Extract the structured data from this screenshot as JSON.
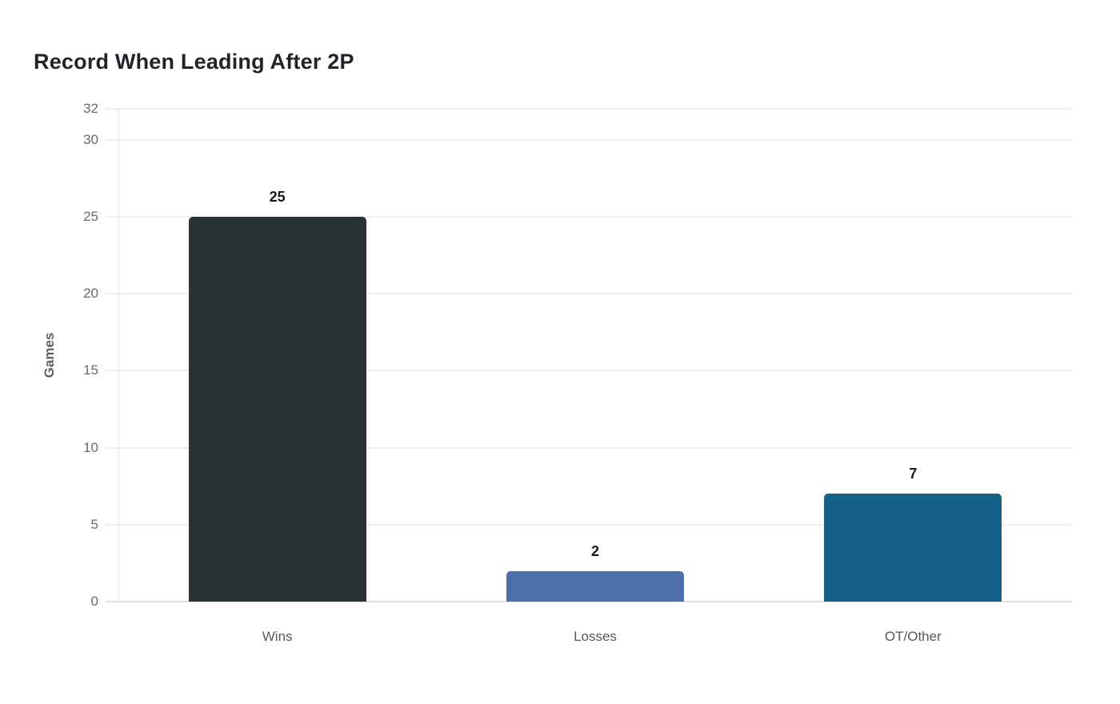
{
  "chart_data": {
    "type": "bar",
    "title": "Record When Leading After 2P",
    "xlabel": "",
    "ylabel": "Games",
    "categories": [
      "Wins",
      "Losses",
      "OT/Other"
    ],
    "values": [
      25,
      2,
      7
    ],
    "value_labels": [
      "25",
      "2",
      "7"
    ],
    "bar_colors": [
      "#2b3236",
      "#4d70a8",
      "#16618a"
    ],
    "yticks": [
      0,
      5,
      10,
      15,
      20,
      25,
      30,
      32
    ],
    "ylim": [
      0,
      32
    ],
    "grid": "horizontal",
    "legend": "none"
  },
  "colors": {
    "background": "#ffffff",
    "title": "#21252a",
    "gridline": "#ededed",
    "zero_line": "#dcdcdc",
    "axis_line": "#d4d4d4",
    "y_tick_label": "#666a6d",
    "y_axis_label": "#5b5f63",
    "x_tick_label": "#54575b",
    "value_label": "#16181a"
  }
}
